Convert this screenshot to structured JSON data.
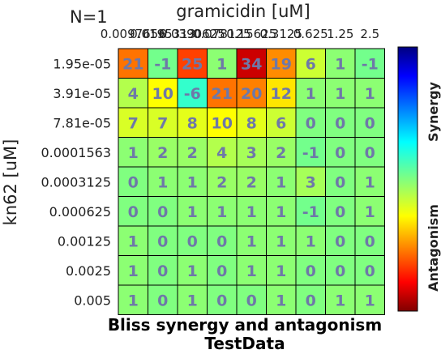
{
  "chart_data": {
    "type": "heatmap",
    "title": "Bliss synergy and antagonism",
    "subtitle": "TestData",
    "annotation": "N=1",
    "xlabel": "gramicidin [uM]",
    "ylabel": "kn62 [uM]",
    "x": [
      "0.0097656",
      "0.0195313",
      "0.0390625",
      "0.078125",
      "0.15625",
      "0.3125",
      "0.625",
      "1.25",
      "2.5"
    ],
    "y": [
      "1.95e-05",
      "3.91e-05",
      "7.81e-05",
      "0.0001563",
      "0.0003125",
      "0.000625",
      "0.00125",
      "0.0025",
      "0.005"
    ],
    "values": [
      [
        21,
        -1,
        25,
        1,
        34,
        19,
        6,
        1,
        -1
      ],
      [
        4,
        10,
        -6,
        21,
        20,
        12,
        1,
        1,
        1
      ],
      [
        7,
        7,
        8,
        10,
        8,
        6,
        0,
        0,
        0
      ],
      [
        1,
        2,
        2,
        4,
        3,
        2,
        -1,
        0,
        0
      ],
      [
        0,
        1,
        1,
        2,
        2,
        1,
        3,
        0,
        1
      ],
      [
        0,
        0,
        1,
        1,
        1,
        1,
        -1,
        0,
        1
      ],
      [
        1,
        0,
        0,
        0,
        1,
        1,
        1,
        0,
        0
      ],
      [
        1,
        0,
        1,
        0,
        1,
        1,
        0,
        0,
        0
      ],
      [
        1,
        0,
        1,
        0,
        0,
        1,
        0,
        1,
        1
      ]
    ],
    "colorbar": {
      "top_label": "Synergy",
      "bottom_label": "Antagonism",
      "range": [
        -40,
        40
      ]
    },
    "colormap": "jet"
  }
}
